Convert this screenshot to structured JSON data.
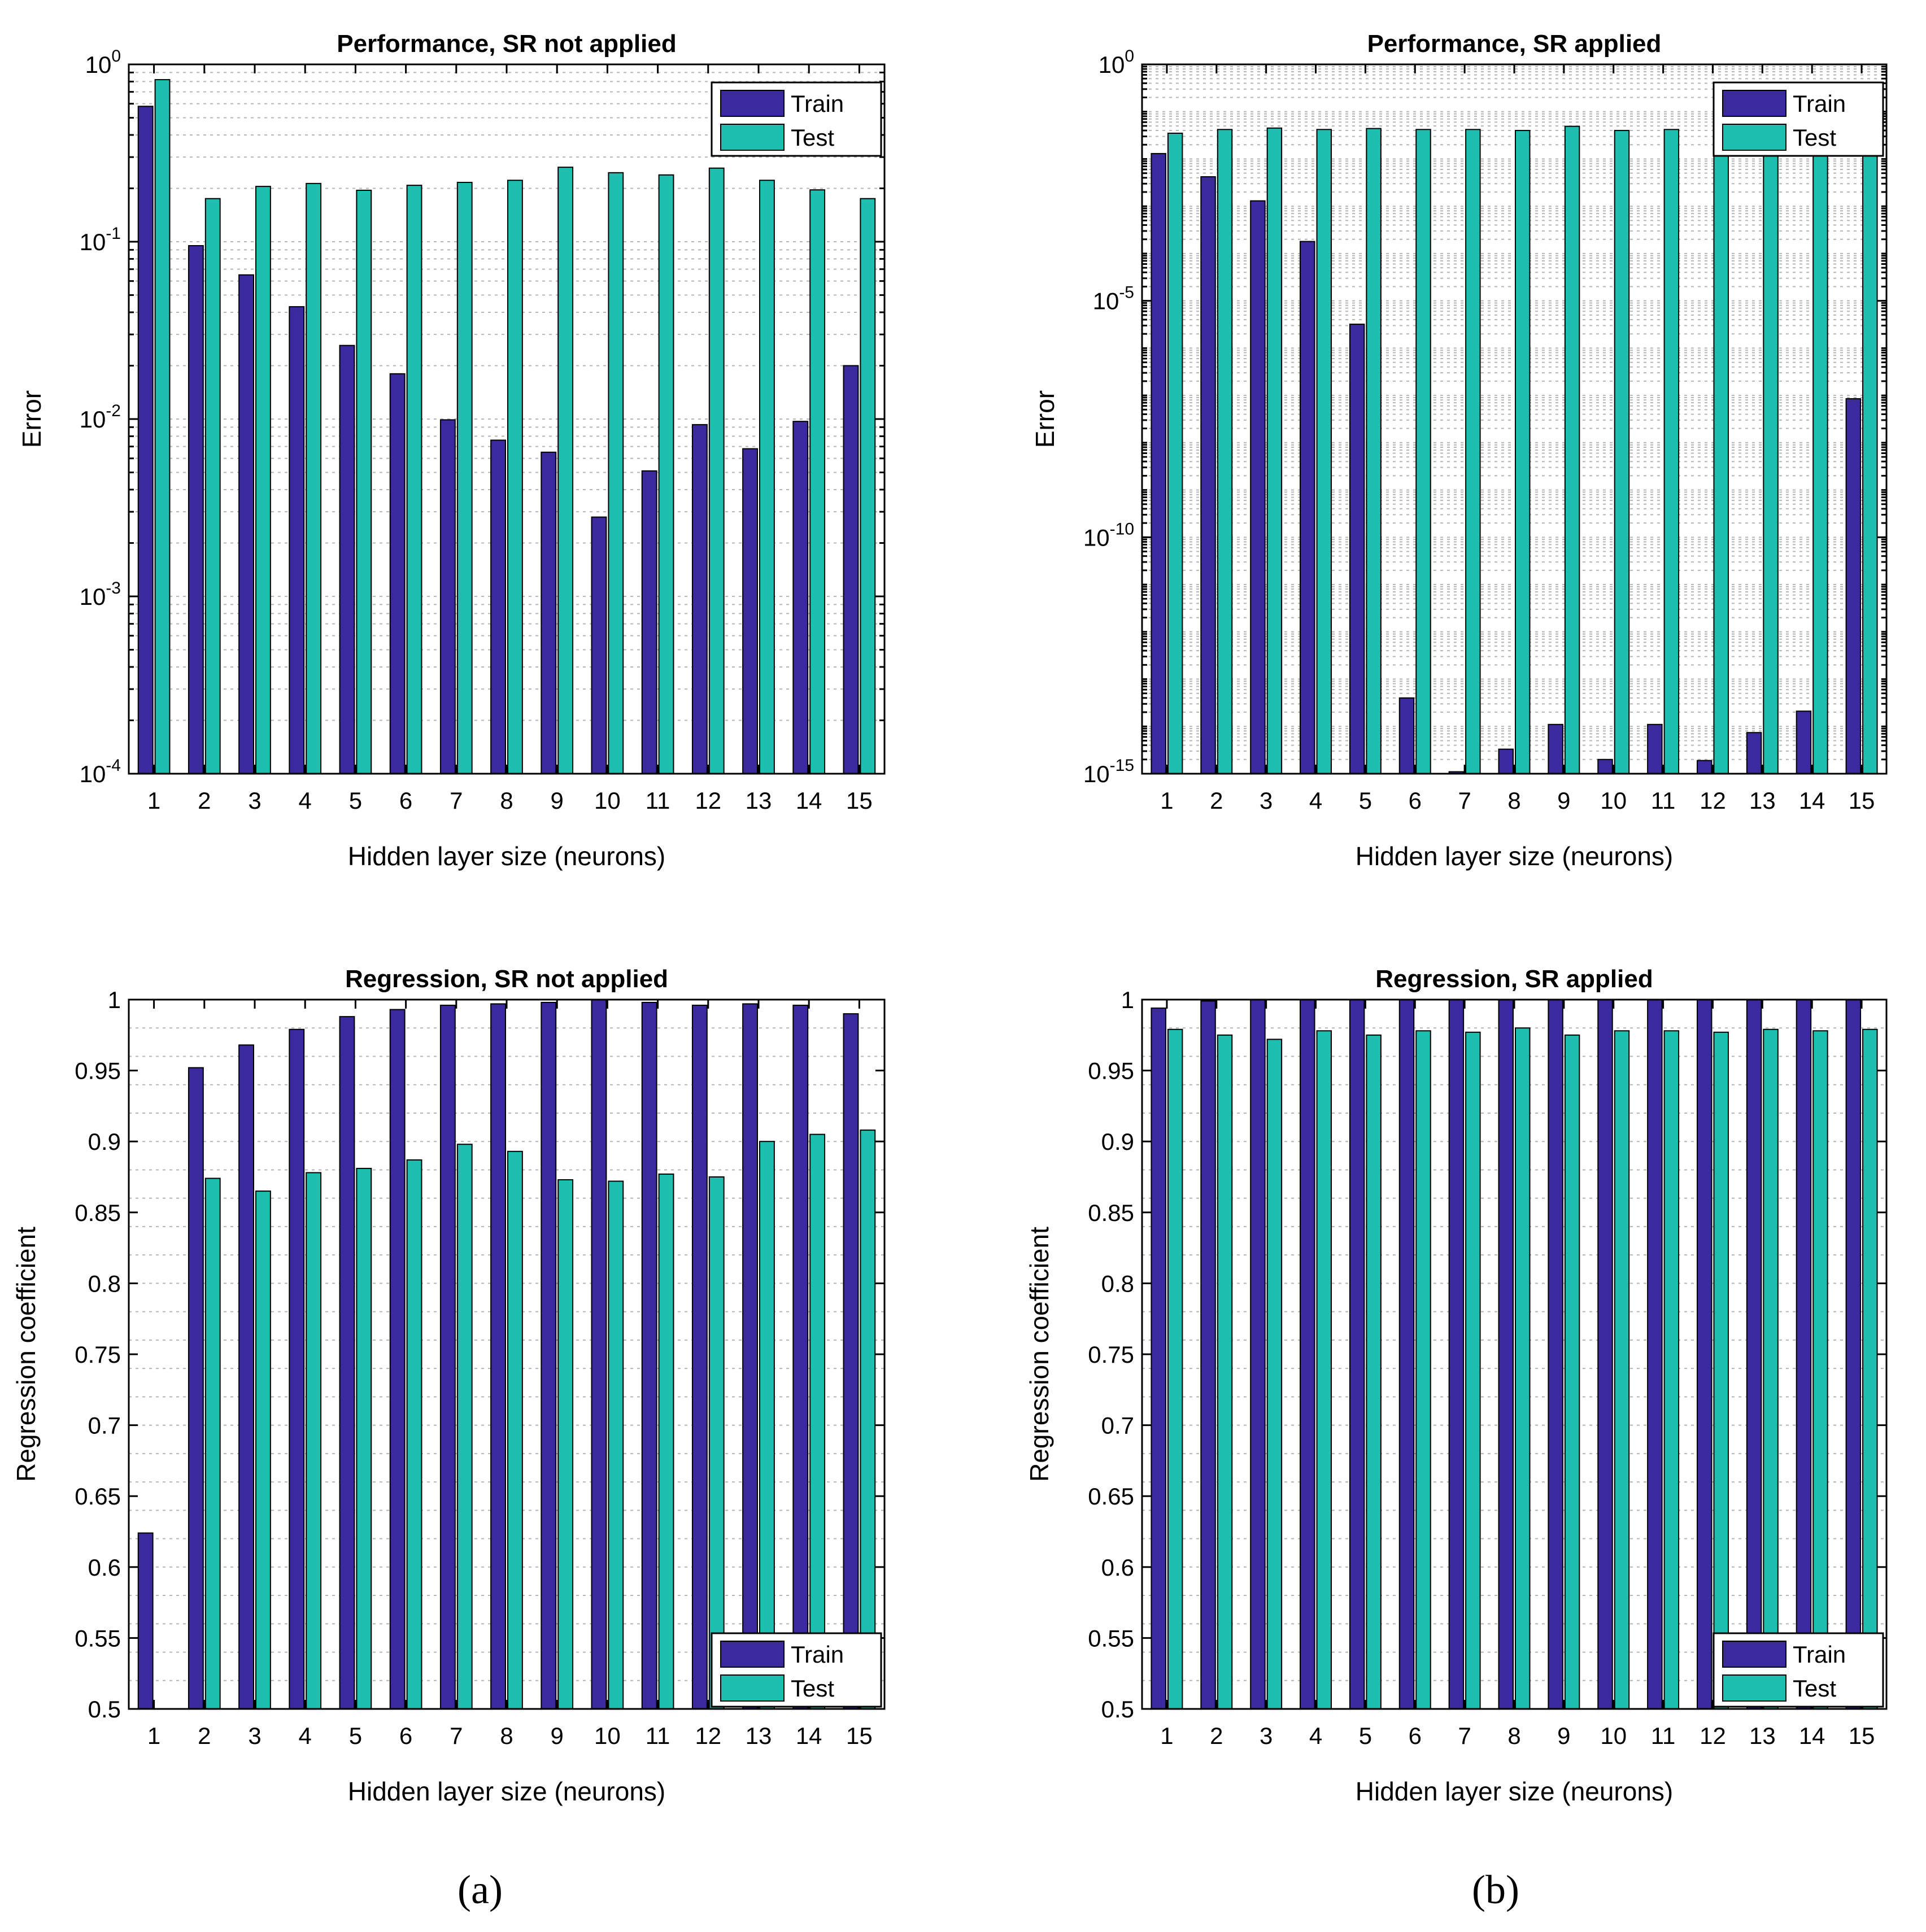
{
  "panels": [
    {
      "title": "Performance, SR not applied",
      "xlabel": "Hidden layer size (neurons)",
      "ylabel": "Error",
      "legend_position": "top-right"
    },
    {
      "title": "Performance, SR applied",
      "xlabel": "Hidden layer size (neurons)",
      "ylabel": "Error",
      "legend_position": "top-right"
    },
    {
      "title": "Regression, SR not applied",
      "xlabel": "Hidden layer size (neurons)",
      "ylabel": "Regression coefficient",
      "legend_position": "bottom-right"
    },
    {
      "title": "Regression, SR applied",
      "xlabel": "Hidden layer size (neurons)",
      "ylabel": "Regression coefficient",
      "legend_position": "bottom-right"
    }
  ],
  "panel_labels": [
    "(a)",
    "(b)"
  ],
  "colors": {
    "train": "#3a2a9e",
    "test": "#1fbfb0"
  },
  "chart_data": [
    {
      "type": "bar",
      "title": "Performance, SR not applied",
      "xlabel": "Hidden layer size (neurons)",
      "ylabel": "Error",
      "yscale": "log",
      "ylim": [
        0.0001,
        1
      ],
      "yticks": [
        {
          "base": "10",
          "exp": "0",
          "value": 1
        },
        {
          "base": "10",
          "exp": "-1",
          "value": 0.1
        },
        {
          "base": "10",
          "exp": "-2",
          "value": 0.01
        },
        {
          "base": "10",
          "exp": "-3",
          "value": 0.001
        },
        {
          "base": "10",
          "exp": "-4",
          "value": 0.0001
        }
      ],
      "categories": [
        "1",
        "2",
        "3",
        "4",
        "5",
        "6",
        "7",
        "8",
        "9",
        "10",
        "11",
        "12",
        "13",
        "14",
        "15"
      ],
      "series": [
        {
          "name": "Train",
          "values": [
            0.58,
            0.095,
            0.065,
            0.043,
            0.026,
            0.018,
            0.0099,
            0.0076,
            0.0065,
            0.0028,
            0.0051,
            0.0093,
            0.0068,
            0.0097,
            0.02
          ]
        },
        {
          "name": "Test",
          "values": [
            0.82,
            0.175,
            0.205,
            0.213,
            0.195,
            0.208,
            0.216,
            0.222,
            0.263,
            0.245,
            0.238,
            0.26,
            0.222,
            0.196,
            0.175
          ]
        }
      ]
    },
    {
      "type": "bar",
      "title": "Performance, SR applied",
      "xlabel": "Hidden layer size (neurons)",
      "ylabel": "Error",
      "yscale": "log",
      "ylim": [
        1e-15,
        1
      ],
      "yticks": [
        {
          "base": "10",
          "exp": "0",
          "value": 1
        },
        {
          "base": "10",
          "exp": "-5",
          "value": 1e-05
        },
        {
          "base": "10",
          "exp": "-10",
          "value": 1e-10
        },
        {
          "base": "10",
          "exp": "-15",
          "value": 1e-15
        }
      ],
      "categories": [
        "1",
        "2",
        "3",
        "4",
        "5",
        "6",
        "7",
        "8",
        "9",
        "10",
        "11",
        "12",
        "13",
        "14",
        "15"
      ],
      "series": [
        {
          "name": "Train",
          "values": [
            0.013,
            0.0042,
            0.0013,
            0.00018,
            3.2e-06,
            4e-14,
            1.1e-15,
            3.3e-15,
            1.1e-14,
            2e-15,
            1.1e-14,
            1.9e-15,
            7.4e-15,
            2.1e-14,
            8.5e-08
          ]
        },
        {
          "name": "Test",
          "values": [
            0.035,
            0.042,
            0.045,
            0.042,
            0.044,
            0.042,
            0.042,
            0.04,
            0.049,
            0.04,
            0.042,
            0.044,
            0.044,
            0.04,
            0.042
          ]
        }
      ]
    },
    {
      "type": "bar",
      "title": "Regression, SR not applied",
      "xlabel": "Hidden layer size (neurons)",
      "ylabel": "Regression coefficient",
      "yscale": "linear",
      "ylim": [
        0.5,
        1
      ],
      "yticks": [
        "0.5",
        "0.55",
        "0.6",
        "0.65",
        "0.7",
        "0.75",
        "0.8",
        "0.85",
        "0.9",
        "0.95",
        "1"
      ],
      "categories": [
        "1",
        "2",
        "3",
        "4",
        "5",
        "6",
        "7",
        "8",
        "9",
        "10",
        "11",
        "12",
        "13",
        "14",
        "15"
      ],
      "series": [
        {
          "name": "Train",
          "values": [
            0.624,
            0.952,
            0.968,
            0.979,
            0.988,
            0.993,
            0.996,
            0.997,
            0.998,
            1.0,
            0.998,
            0.996,
            0.997,
            0.996,
            0.99
          ]
        },
        {
          "name": "Test",
          "values": [
            0.5,
            0.874,
            0.865,
            0.878,
            0.881,
            0.887,
            0.898,
            0.893,
            0.873,
            0.872,
            0.877,
            0.875,
            0.9,
            0.905,
            0.908
          ]
        }
      ]
    },
    {
      "type": "bar",
      "title": "Regression, SR applied",
      "xlabel": "Hidden layer size (neurons)",
      "ylabel": "Regression coefficient",
      "yscale": "linear",
      "ylim": [
        0.5,
        1
      ],
      "yticks": [
        "0.5",
        "0.55",
        "0.6",
        "0.65",
        "0.7",
        "0.75",
        "0.8",
        "0.85",
        "0.9",
        "0.95",
        "1"
      ],
      "categories": [
        "1",
        "2",
        "3",
        "4",
        "5",
        "6",
        "7",
        "8",
        "9",
        "10",
        "11",
        "12",
        "13",
        "14",
        "15"
      ],
      "series": [
        {
          "name": "Train",
          "values": [
            0.994,
            0.999,
            1.0,
            1.0,
            1.0,
            1.0,
            1.0,
            1.0,
            1.0,
            1.0,
            1.0,
            1.0,
            1.0,
            1.0,
            1.0
          ]
        },
        {
          "name": "Test",
          "values": [
            0.979,
            0.975,
            0.972,
            0.978,
            0.975,
            0.978,
            0.977,
            0.98,
            0.975,
            0.978,
            0.978,
            0.977,
            0.979,
            0.978,
            0.979
          ]
        }
      ]
    }
  ]
}
